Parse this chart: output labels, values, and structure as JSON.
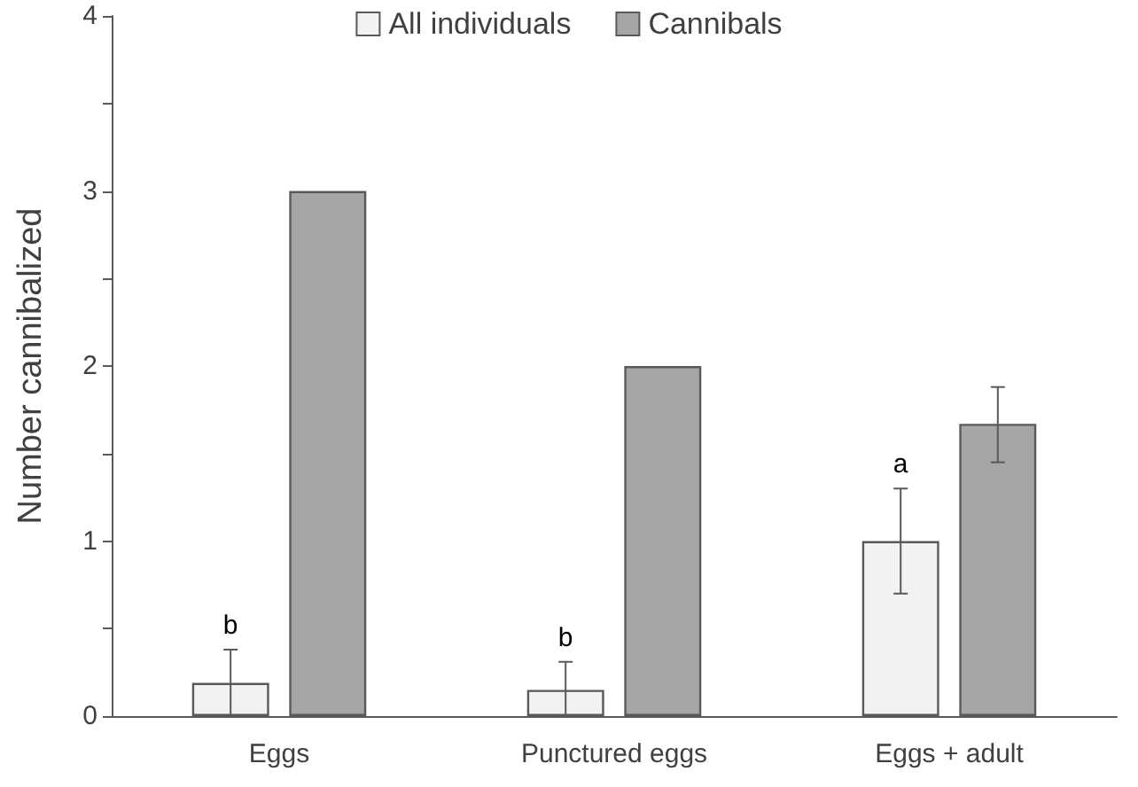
{
  "chart_data": {
    "type": "bar",
    "ylabel": "Number cannibalized",
    "categories": [
      "Eggs",
      "Punctured eggs",
      "Eggs + adult"
    ],
    "series": [
      {
        "name": "All individuals",
        "color": "#f2f2f2",
        "values": [
          0.19,
          0.15,
          1.0
        ],
        "errors": [
          [
            0,
            0.38
          ],
          [
            0,
            0.31
          ],
          [
            0.7,
            1.3
          ]
        ]
      },
      {
        "name": "Cannibals",
        "color": "#a6a6a6",
        "values": [
          3,
          2,
          1.67
        ],
        "errors": [
          null,
          null,
          [
            1.45,
            1.88
          ]
        ]
      }
    ],
    "ylim": [
      0,
      4
    ],
    "yticks": [
      0,
      {
        "value": 0.5,
        "label": null
      },
      1,
      {
        "value": 1.5,
        "label": null
      },
      2,
      {
        "value": 2.5,
        "label": null
      },
      3,
      {
        "value": 3.5,
        "label": null
      },
      4
    ],
    "grid": false,
    "legend": "top",
    "annotations": [
      "b",
      "b",
      "a"
    ]
  }
}
